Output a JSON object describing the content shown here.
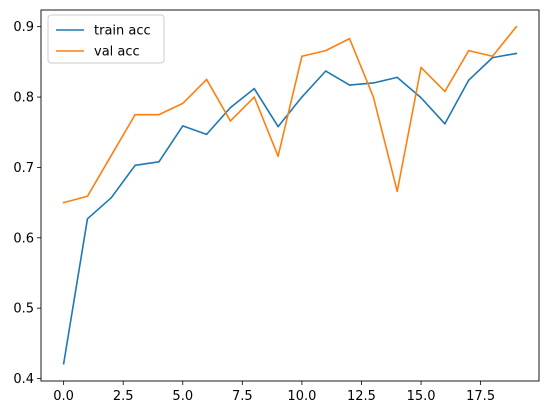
{
  "chart_data": {
    "type": "line",
    "title": "",
    "xlabel": "",
    "ylabel": "",
    "xlim": [
      -0.95,
      19.95
    ],
    "ylim": [
      0.3965,
      0.9237
    ],
    "x": [
      0,
      1,
      2,
      3,
      4,
      5,
      6,
      7,
      8,
      9,
      10,
      11,
      12,
      13,
      14,
      15,
      16,
      17,
      18,
      19
    ],
    "xticks": [
      0.0,
      2.5,
      5.0,
      7.5,
      10.0,
      12.5,
      15.0,
      17.5
    ],
    "xtick_labels": [
      "0.0",
      "2.5",
      "5.0",
      "7.5",
      "10.0",
      "12.5",
      "15.0",
      "17.5"
    ],
    "yticks": [
      0.4,
      0.5,
      0.6,
      0.7,
      0.8,
      0.9
    ],
    "ytick_labels": [
      "0.4",
      "0.5",
      "0.6",
      "0.7",
      "0.8",
      "0.9"
    ],
    "grid": false,
    "legend_position": "upper-left",
    "series": [
      {
        "name": "train acc",
        "color": "#1f77b4",
        "values": [
          0.421,
          0.627,
          0.657,
          0.703,
          0.708,
          0.759,
          0.747,
          0.785,
          0.812,
          0.758,
          0.8,
          0.837,
          0.817,
          0.82,
          0.828,
          0.799,
          0.762,
          0.824,
          0.856,
          0.862
        ]
      },
      {
        "name": "val acc",
        "color": "#ff7f0e",
        "values": [
          0.65,
          0.659,
          0.717,
          0.775,
          0.775,
          0.791,
          0.825,
          0.766,
          0.8,
          0.716,
          0.858,
          0.866,
          0.883,
          0.8,
          0.666,
          0.842,
          0.808,
          0.866,
          0.858,
          0.9
        ]
      }
    ]
  }
}
